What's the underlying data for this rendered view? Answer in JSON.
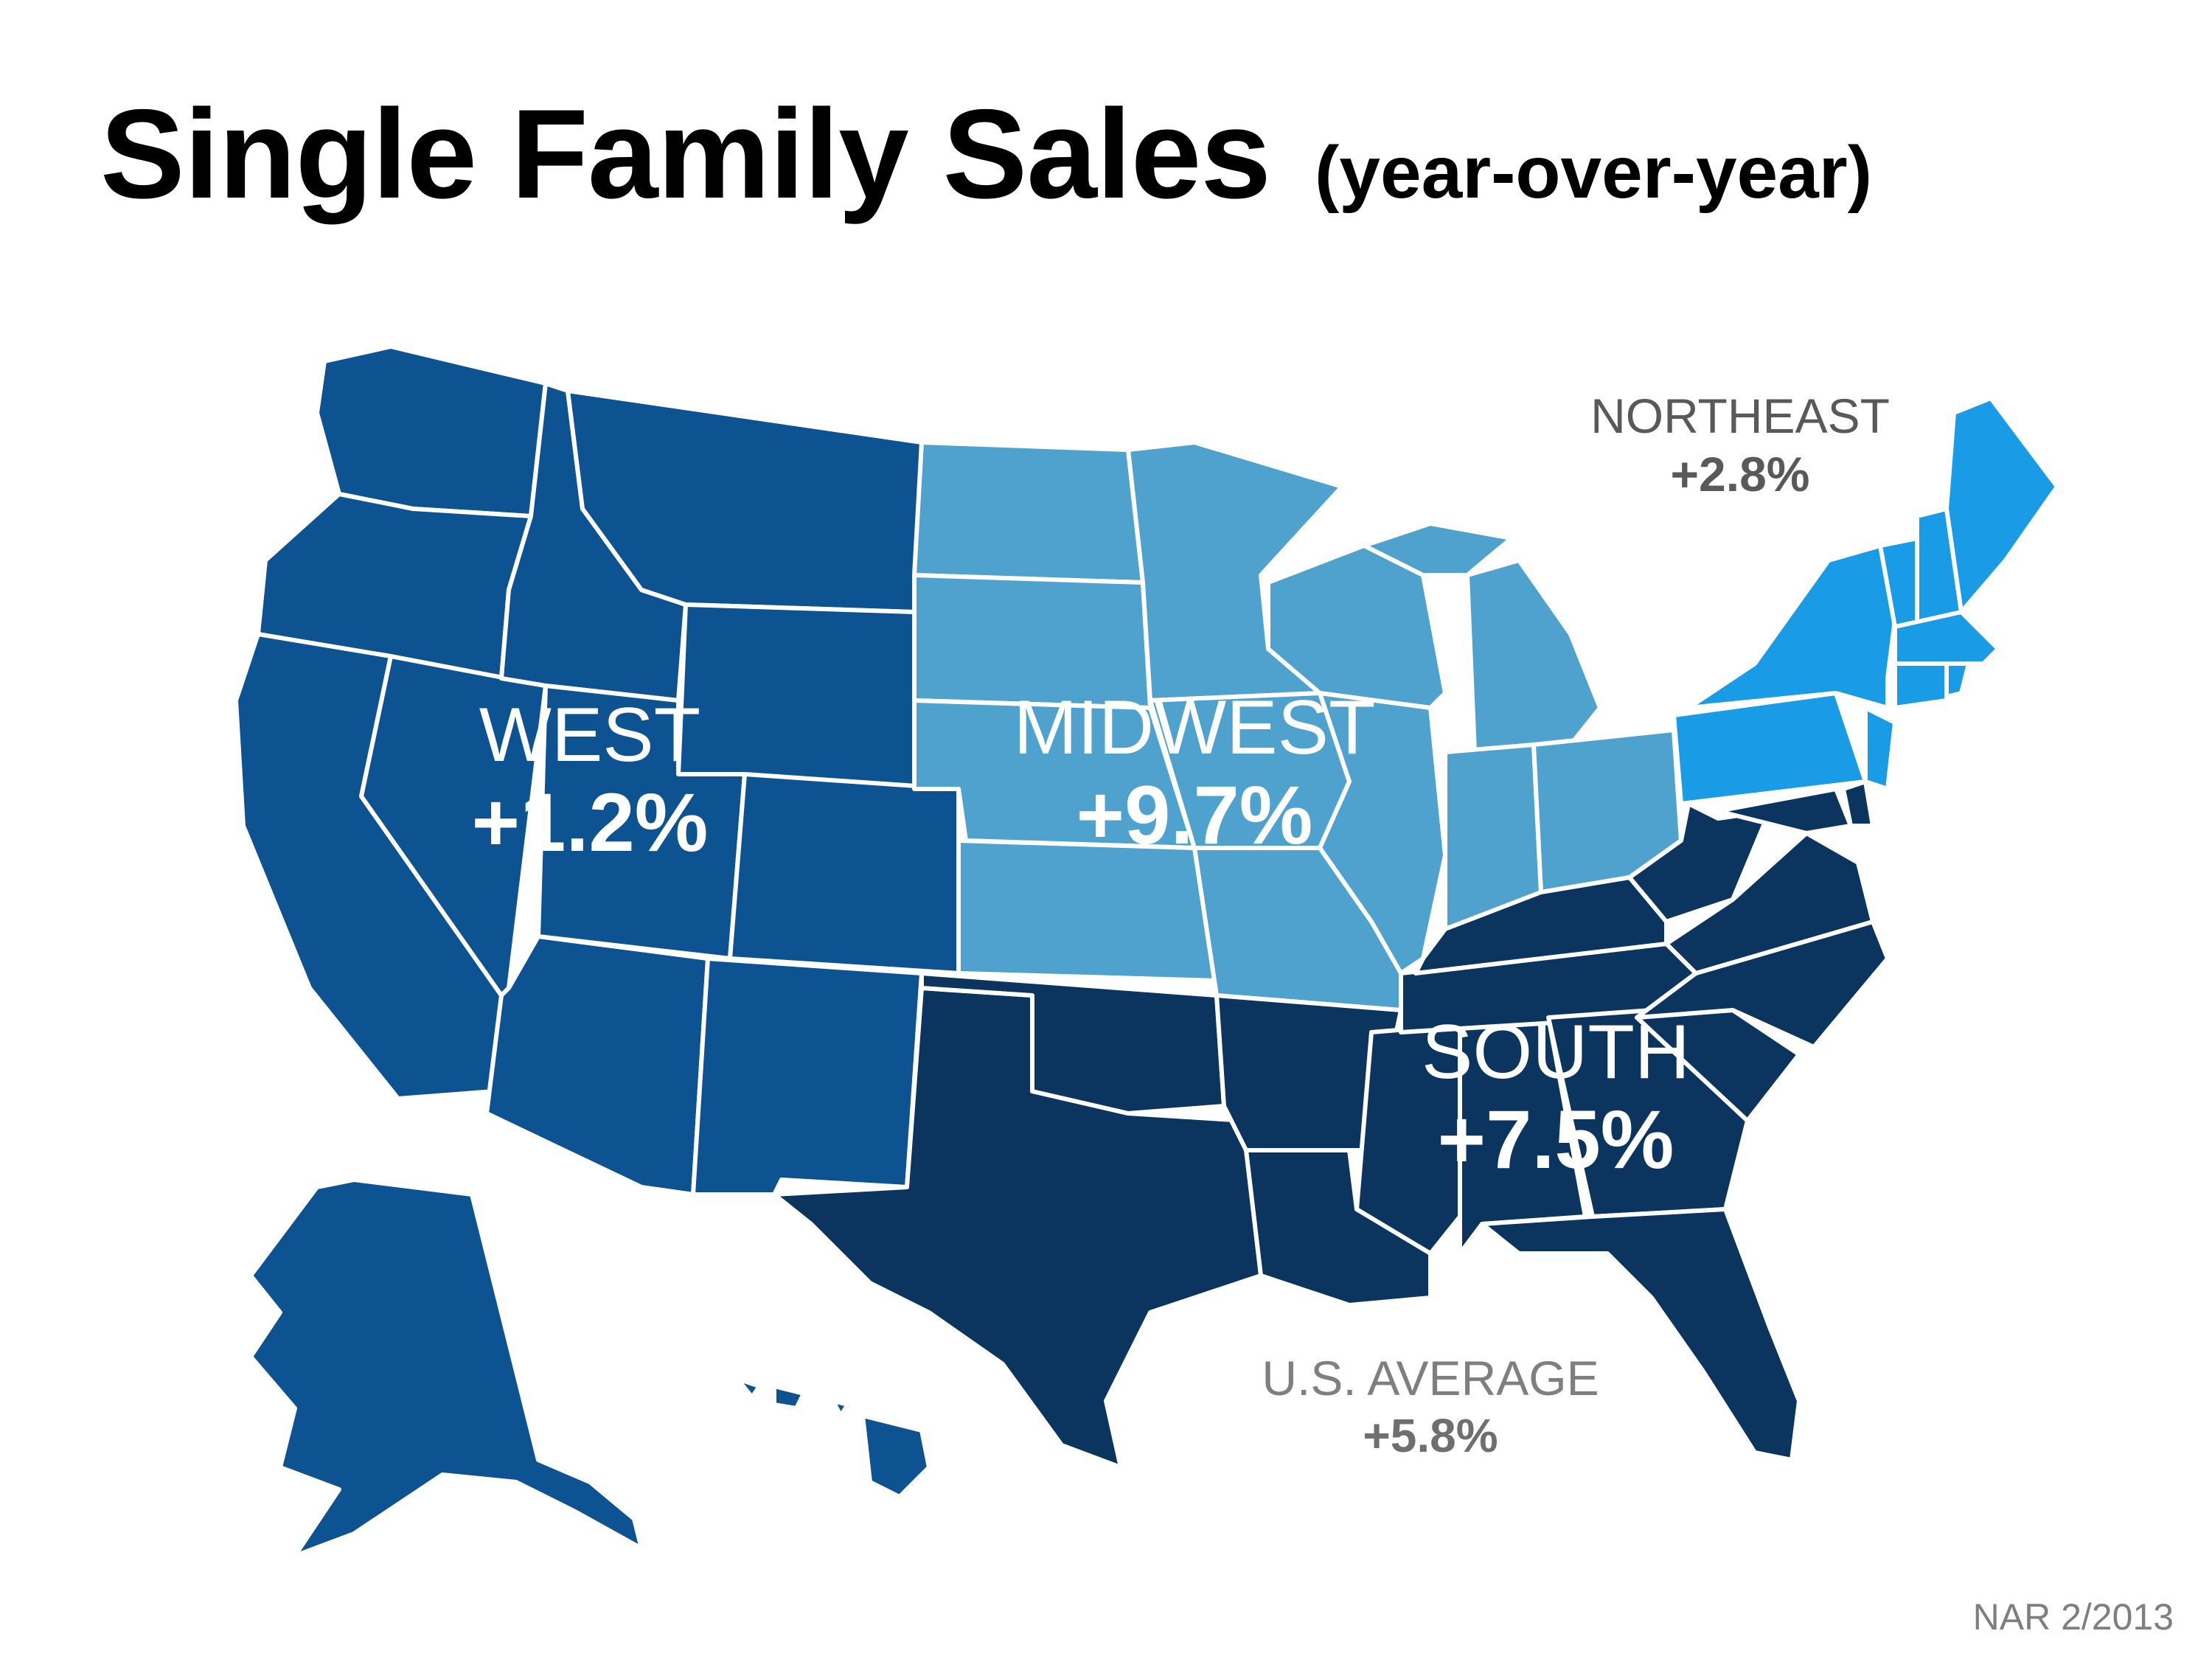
{
  "title": {
    "main": "Single Family Sales",
    "sub": "(year-over-year)"
  },
  "regions": {
    "west": {
      "name": "WEST",
      "value": "+1.2%",
      "color": "#0d5291"
    },
    "midwest": {
      "name": "MIDWEST",
      "value": "+9.7%",
      "color": "#4fa2cd"
    },
    "south": {
      "name": "SOUTH",
      "value": "+7.5%",
      "color": "#0b355f"
    },
    "northeast": {
      "name": "NORTHEAST",
      "value": "+2.8%",
      "color": "#199be6"
    }
  },
  "us_average": {
    "name": "U.S. AVERAGE",
    "value": "+5.8%"
  },
  "source": "NAR 2/2013",
  "colors": {
    "border": "#ffffff",
    "title": "#000000",
    "muted_text": "#7f7f7f"
  }
}
